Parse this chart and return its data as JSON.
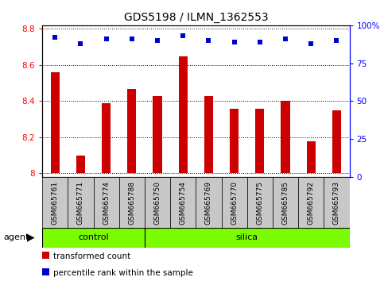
{
  "title": "GDS5198 / ILMN_1362553",
  "samples": [
    "GSM665761",
    "GSM665771",
    "GSM665774",
    "GSM665788",
    "GSM665750",
    "GSM665754",
    "GSM665769",
    "GSM665770",
    "GSM665775",
    "GSM665785",
    "GSM665792",
    "GSM665793"
  ],
  "transformed_counts": [
    8.56,
    8.1,
    8.39,
    8.47,
    8.43,
    8.65,
    8.43,
    8.36,
    8.36,
    8.4,
    8.18,
    8.35
  ],
  "percentile_ranks": [
    92,
    88,
    91,
    91,
    90,
    93,
    90,
    89,
    89,
    91,
    88,
    90
  ],
  "groups": [
    "control",
    "control",
    "control",
    "control",
    "silica",
    "silica",
    "silica",
    "silica",
    "silica",
    "silica",
    "silica",
    "silica"
  ],
  "ylim_left": [
    7.98,
    8.82
  ],
  "ylim_right": [
    0,
    100
  ],
  "yticks_left": [
    8.0,
    8.2,
    8.4,
    8.6,
    8.8
  ],
  "ytick_labels_left": [
    "8",
    "8.2",
    "8.4",
    "8.6",
    "8.8"
  ],
  "yticks_right": [
    0,
    25,
    50,
    75,
    100
  ],
  "ytick_labels_right": [
    "0",
    "25",
    "50",
    "75",
    "100%"
  ],
  "bar_color": "#CC0000",
  "dot_color": "#0000CC",
  "group_color": "#7CFC00",
  "bg_color": "#C8C8C8",
  "legend_items": [
    "transformed count",
    "percentile rank within the sample"
  ],
  "agent_label": "agent",
  "group_labels": [
    "control",
    "silica"
  ],
  "n_control": 4,
  "n_silica": 8,
  "bar_bottom": 8.0,
  "bar_width": 0.35
}
